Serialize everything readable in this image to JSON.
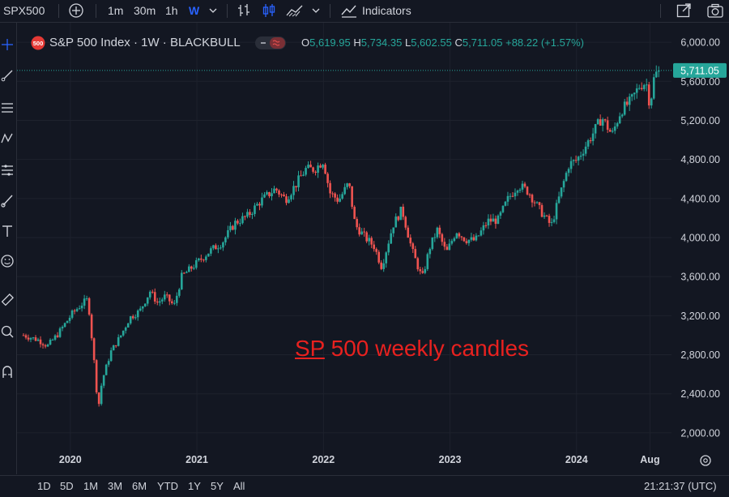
{
  "toolbar": {
    "symbol": "SPX500",
    "intervals": [
      "1m",
      "30m",
      "1h",
      "W"
    ],
    "active_interval": "W",
    "indicators_label": "Indicators"
  },
  "legend": {
    "title": "S&P 500 Index · 1W · BLACKBULL",
    "badge": "500",
    "ohlc": {
      "open_label": "O",
      "open": "5,619.95",
      "high_label": "H",
      "high": "5,734.35",
      "low_label": "L",
      "low": "5,602.55",
      "close_label": "C",
      "close": "5,711.05",
      "change": "+88.22 (+1.57%)"
    }
  },
  "annotation": {
    "text_underlined": "SP",
    "text_rest": " 500 weekly candles",
    "color": "#e8211f"
  },
  "bottom_bar": {
    "ranges": [
      "1D",
      "5D",
      "1M",
      "3M",
      "6M",
      "YTD",
      "1Y",
      "5Y",
      "All"
    ],
    "clock": "21:21:37 (UTC)"
  },
  "colors": {
    "background": "#131722",
    "up": "#26a69a",
    "down": "#ef5350",
    "grid": "#1e222d",
    "text": "#d1d4dc",
    "price_tag": "#26a69a"
  },
  "chart_data": {
    "type": "candlestick",
    "symbol": "S&P 500 Index",
    "interval": "1W",
    "y_axis_ticks": [
      "6,000.00",
      "5,600.00",
      "5,200.00",
      "4,800.00",
      "4,400.00",
      "4,000.00",
      "3,600.00",
      "3,200.00",
      "2,800.00",
      "2,400.00",
      "2,000.00"
    ],
    "y_tick_values": [
      6000,
      5600,
      5200,
      4800,
      4400,
      4000,
      3600,
      3200,
      2800,
      2400,
      2000
    ],
    "ylim": [
      1800,
      6200
    ],
    "x_axis_ticks": [
      "2020",
      "2021",
      "2022",
      "2023",
      "2024",
      "Aug"
    ],
    "x_tick_values": [
      2020.0,
      2021.0,
      2022.0,
      2023.0,
      2024.0,
      2024.58
    ],
    "xlim": [
      2019.63,
      2024.75
    ],
    "last_price": 5711.05,
    "last_price_label": "5,711.05",
    "price_path": [
      [
        2019.63,
        3000
      ],
      [
        2019.75,
        2950
      ],
      [
        2019.82,
        2890
      ],
      [
        2019.9,
        3010
      ],
      [
        2020.02,
        3230
      ],
      [
        2020.1,
        3330
      ],
      [
        2020.14,
        3370
      ],
      [
        2020.16,
        3100
      ],
      [
        2020.19,
        2700
      ],
      [
        2020.22,
        2240
      ],
      [
        2020.25,
        2530
      ],
      [
        2020.32,
        2830
      ],
      [
        2020.4,
        3000
      ],
      [
        2020.47,
        3180
      ],
      [
        2020.55,
        3250
      ],
      [
        2020.63,
        3450
      ],
      [
        2020.69,
        3330
      ],
      [
        2020.75,
        3400
      ],
      [
        2020.82,
        3300
      ],
      [
        2020.88,
        3600
      ],
      [
        2021.0,
        3740
      ],
      [
        2021.1,
        3860
      ],
      [
        2021.2,
        3950
      ],
      [
        2021.3,
        4150
      ],
      [
        2021.4,
        4220
      ],
      [
        2021.5,
        4370
      ],
      [
        2021.62,
        4500
      ],
      [
        2021.7,
        4390
      ],
      [
        2021.78,
        4540
      ],
      [
        2021.86,
        4700
      ],
      [
        2021.93,
        4700
      ],
      [
        2022.0,
        4790
      ],
      [
        2022.05,
        4460
      ],
      [
        2022.12,
        4380
      ],
      [
        2022.2,
        4560
      ],
      [
        2022.25,
        4130
      ],
      [
        2022.33,
        4000
      ],
      [
        2022.4,
        3910
      ],
      [
        2022.46,
        3700
      ],
      [
        2022.55,
        4130
      ],
      [
        2022.62,
        4290
      ],
      [
        2022.7,
        3870
      ],
      [
        2022.78,
        3580
      ],
      [
        2022.84,
        3900
      ],
      [
        2022.9,
        4080
      ],
      [
        2022.97,
        3840
      ],
      [
        2023.05,
        4070
      ],
      [
        2023.12,
        3980
      ],
      [
        2023.2,
        3970
      ],
      [
        2023.3,
        4170
      ],
      [
        2023.38,
        4180
      ],
      [
        2023.46,
        4400
      ],
      [
        2023.54,
        4540
      ],
      [
        2023.62,
        4470
      ],
      [
        2023.7,
        4300
      ],
      [
        2023.8,
        4120
      ],
      [
        2023.86,
        4400
      ],
      [
        2023.94,
        4750
      ],
      [
        2024.0,
        4790
      ],
      [
        2024.1,
        5000
      ],
      [
        2024.2,
        5230
      ],
      [
        2024.28,
        5050
      ],
      [
        2024.35,
        5300
      ],
      [
        2024.43,
        5400
      ],
      [
        2024.5,
        5560
      ],
      [
        2024.55,
        5590
      ],
      [
        2024.58,
        5350
      ],
      [
        2024.61,
        5620
      ],
      [
        2024.64,
        5711
      ]
    ]
  }
}
